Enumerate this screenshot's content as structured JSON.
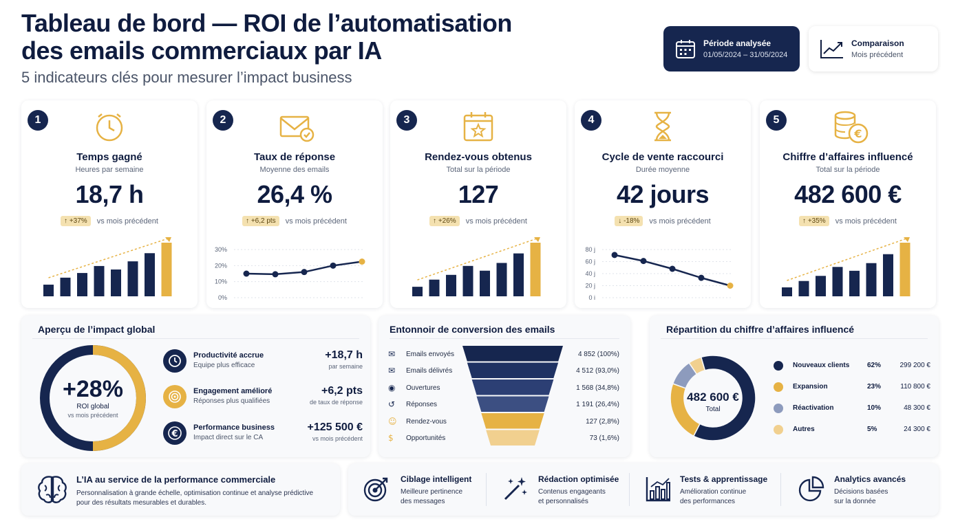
{
  "header": {
    "title_line1": "Tableau de bord — ROI de l’automatisation",
    "title_line2": "des emails commerciaux par IA",
    "subtitle": "5 indicateurs clés pour mesurer l’impact business",
    "period_label": "Période analysée",
    "period_value": "01/05/2024 – 31/05/2024",
    "compare_label": "Comparaison",
    "compare_value": "Mois précédent"
  },
  "kpis": [
    {
      "num": "1",
      "icon": "clock-icon",
      "title": "Temps gagné",
      "subtitle": "Heures par semaine",
      "value": "18,7 h",
      "delta": "↑ +37%",
      "delta_suffix": "vs mois précédent",
      "chart": {
        "type": "bar",
        "values": [
          2,
          3.2,
          4,
          5.2,
          4.6,
          6,
          7.4,
          9.2
        ],
        "highlight_last": true,
        "trend": true
      }
    },
    {
      "num": "2",
      "icon": "email-check-icon",
      "title": "Taux de réponse",
      "subtitle": "Moyenne des emails",
      "value": "26,4 %",
      "delta": "↑ +6,2 pts",
      "delta_suffix": "vs mois précédent",
      "chart": {
        "type": "line",
        "values": [
          15,
          14.6,
          16,
          20,
          22.5
        ],
        "ylim": [
          0,
          30
        ],
        "yticks": [
          "30%",
          "20%",
          "10%",
          "0%"
        ]
      }
    },
    {
      "num": "3",
      "icon": "calendar-star-icon",
      "title": "Rendez-vous obtenus",
      "subtitle": "Total sur la période",
      "value": "127",
      "delta": "↑ +26%",
      "delta_suffix": "vs mois précédent",
      "chart": {
        "type": "bar",
        "values": [
          1.6,
          2.8,
          3.6,
          5.1,
          4.3,
          5.6,
          7.2,
          9
        ]
      }
    },
    {
      "num": "4",
      "icon": "hourglass-icon",
      "title": "Cycle de vente raccourci",
      "subtitle": "Durée moyenne",
      "value": "42 jours",
      "delta": "↓ -18%",
      "delta_suffix": "vs mois précédent",
      "chart": {
        "type": "line",
        "values": [
          71,
          61,
          48,
          33,
          20
        ],
        "ylim": [
          0,
          80
        ],
        "yticks": [
          "80 j",
          "60 j",
          "40 j",
          "20 j",
          "0 j"
        ]
      }
    },
    {
      "num": "5",
      "icon": "coins-euro-icon",
      "title": "Chiffre d’affaires influencé",
      "subtitle": "Total sur la période",
      "value": "482 600 €",
      "delta": "↑ +35%",
      "delta_suffix": "vs mois précédent",
      "chart": {
        "type": "bar",
        "values": [
          1.4,
          2.4,
          3.2,
          4.6,
          4,
          5.2,
          6.6,
          8.4
        ]
      }
    }
  ],
  "impact": {
    "title": "Aperçu de l’impact global",
    "roi_value": "+28%",
    "roi_label": "ROI global",
    "roi_sub": "vs mois précédent",
    "roi_fraction": 0.5,
    "items": [
      {
        "icon": "clock-icon",
        "label": "Productivité accrue",
        "desc": "Equipe plus efficace",
        "value": "+18,7 h",
        "value_sub": "par semaine"
      },
      {
        "icon": "target-icon",
        "label": "Engagement amélioré",
        "desc": "Réponses plus qualifiées",
        "value": "+6,2 pts",
        "value_sub": "de taux de réponse"
      },
      {
        "icon": "euro-icon",
        "label": "Performance business",
        "desc": "Impact direct sur le CA",
        "value": "+125 500 €",
        "value_sub": "vs mois précédent"
      }
    ]
  },
  "funnel": {
    "title": "Entonnoir de conversion des emails",
    "rows": [
      {
        "icon": "envelope-icon",
        "label": "Emails envoyés",
        "value": "4 852 (100%)"
      },
      {
        "icon": "envelope-check-icon",
        "label": "Emails délivrés",
        "value": "4 512 (93,0%)"
      },
      {
        "icon": "eye-icon",
        "label": "Ouvertures",
        "value": "1 568 (34,8%)"
      },
      {
        "icon": "reply-icon",
        "label": "Réponses",
        "value": "1 191 (26,4%)"
      },
      {
        "icon": "handshake-icon",
        "label": "Rendez-vous",
        "value": "127 (2,8%)"
      },
      {
        "icon": "coin-icon",
        "label": "Opportunités",
        "value": "73 (1,6%)"
      }
    ]
  },
  "revenue": {
    "title": "Répartition du chiffre d’affaires influencé",
    "total": "482 600 €",
    "total_label": "Total",
    "segments": [
      {
        "name": "Nouveaux clients",
        "pct": "62%",
        "amount": "299 200 €",
        "value": 62,
        "color": "#16264f"
      },
      {
        "name": "Expansion",
        "pct": "23%",
        "amount": "110 800 €",
        "value": 23,
        "color": "#e6b244"
      },
      {
        "name": "Réactivation",
        "pct": "10%",
        "amount": "48 300 €",
        "value": 10,
        "color": "#8d9bbd"
      },
      {
        "name": "Autres",
        "pct": "5%",
        "amount": "24 300 €",
        "value": 5,
        "color": "#f1d08f"
      }
    ]
  },
  "features": {
    "ai_title": "L’IA au service de la performance commerciale",
    "ai_desc_line1": "Personnalisation à grande échelle, optimisation continue et analyse prédictive",
    "ai_desc_line2": "pour des résultats mesurables et durables.",
    "items": [
      {
        "icon": "target-icon",
        "title": "Ciblage intelligent",
        "line1": "Meilleure pertinence",
        "line2": "des messages"
      },
      {
        "icon": "magic-wand-icon",
        "title": "Rédaction optimisée",
        "line1": "Contenus engageants",
        "line2": "et personnalisés"
      },
      {
        "icon": "bar-chart-icon",
        "title": "Tests & apprentissage",
        "line1": "Amélioration continue",
        "line2": "des performances"
      },
      {
        "icon": "pie-chart-icon",
        "title": "Analytics avancés",
        "line1": "Décisions basées",
        "line2": "sur la donnée"
      }
    ]
  },
  "colors": {
    "navy": "#16264f",
    "gold": "#e6b244",
    "badge": "#f4e1b0"
  }
}
